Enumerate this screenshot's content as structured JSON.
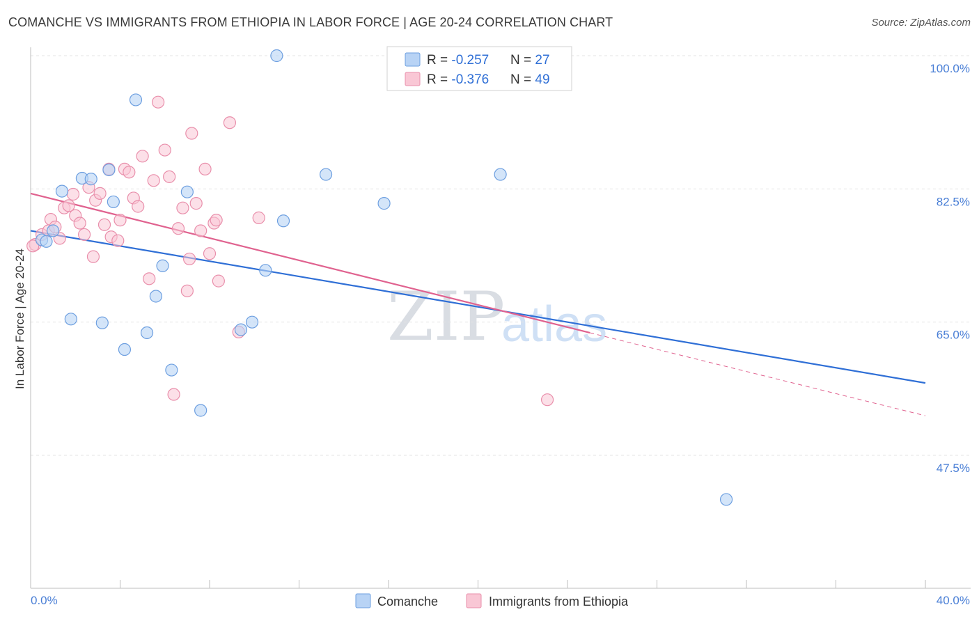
{
  "header": {
    "title": "COMANCHE VS IMMIGRANTS FROM ETHIOPIA IN LABOR FORCE | AGE 20-24 CORRELATION CHART",
    "source": "Source: ZipAtlas.com"
  },
  "watermark": {
    "zip": "ZIP",
    "atlas": "atlas"
  },
  "colors": {
    "comanche_fill": "#b8d3f5",
    "comanche_stroke": "#6d9fe0",
    "comanche_line": "#2f6fd6",
    "ethiopia_fill": "#f9c7d5",
    "ethiopia_stroke": "#e98fab",
    "ethiopia_line": "#e0628f",
    "grid": "#e3e3e3",
    "axis_label": "#4a7fd6"
  },
  "legend": {
    "rows": [
      {
        "r_label": "R = ",
        "r_value": "-0.257",
        "n_label": "N = ",
        "n_value": "27"
      },
      {
        "r_label": "R = ",
        "r_value": "-0.376",
        "n_label": "N = ",
        "n_value": "49"
      }
    ]
  },
  "chart_data": {
    "type": "scatter",
    "title": "COMANCHE VS IMMIGRANTS FROM ETHIOPIA IN LABOR FORCE | AGE 20-24 CORRELATION CHART",
    "xlabel": "",
    "ylabel": "In Labor Force | Age 20-24",
    "xlim": [
      0,
      40
    ],
    "ylim": [
      31.5,
      102
    ],
    "x_tick_labels": [
      "0.0%",
      "40.0%"
    ],
    "y_ticks": [
      47.5,
      65.0,
      82.5,
      100.0
    ],
    "y_tick_labels": [
      "47.5%",
      "65.0%",
      "82.5%",
      "100.0%"
    ],
    "legend_position": "top-center",
    "series": [
      {
        "name": "Comanche",
        "R": -0.257,
        "N": 27,
        "trend": {
          "x0": 0,
          "y0": 77.0,
          "x1": 40,
          "y1": 57.0
        },
        "points": [
          [
            0.5,
            75.8
          ],
          [
            0.7,
            75.6
          ],
          [
            1.0,
            77.0
          ],
          [
            1.4,
            82.2
          ],
          [
            1.8,
            65.4
          ],
          [
            2.3,
            83.9
          ],
          [
            2.7,
            83.8
          ],
          [
            3.2,
            64.9
          ],
          [
            3.5,
            85.0
          ],
          [
            3.7,
            80.8
          ],
          [
            4.2,
            61.4
          ],
          [
            4.7,
            94.2
          ],
          [
            5.2,
            63.6
          ],
          [
            5.6,
            68.4
          ],
          [
            5.9,
            72.4
          ],
          [
            6.3,
            58.7
          ],
          [
            7.0,
            82.1
          ],
          [
            7.6,
            53.4
          ],
          [
            9.4,
            64.0
          ],
          [
            9.9,
            65.0
          ],
          [
            10.5,
            71.8
          ],
          [
            11.0,
            100.0
          ],
          [
            11.3,
            78.3
          ],
          [
            13.2,
            84.4
          ],
          [
            15.8,
            80.6
          ],
          [
            21.0,
            84.4
          ],
          [
            31.1,
            41.7
          ]
        ]
      },
      {
        "name": "Immigrants from Ethiopia",
        "R": -0.376,
        "N": 49,
        "trend_solid": {
          "x0": 0,
          "y0": 81.9,
          "x1": 25.0,
          "y1": 63.6
        },
        "trend_dashed": {
          "x0": 25.0,
          "y0": 63.6,
          "x1": 40,
          "y1": 52.7
        },
        "points": [
          [
            0.2,
            75.2
          ],
          [
            0.5,
            76.5
          ],
          [
            0.8,
            77.0
          ],
          [
            0.9,
            78.5
          ],
          [
            1.1,
            77.5
          ],
          [
            1.3,
            76.0
          ],
          [
            1.5,
            80.0
          ],
          [
            1.7,
            80.3
          ],
          [
            1.9,
            81.8
          ],
          [
            2.0,
            79.0
          ],
          [
            2.2,
            78.0
          ],
          [
            2.4,
            76.5
          ],
          [
            2.6,
            82.7
          ],
          [
            2.8,
            73.6
          ],
          [
            2.9,
            81.0
          ],
          [
            3.1,
            81.9
          ],
          [
            3.3,
            77.8
          ],
          [
            3.5,
            85.1
          ],
          [
            3.6,
            76.2
          ],
          [
            3.9,
            75.7
          ],
          [
            4.0,
            78.4
          ],
          [
            4.2,
            85.1
          ],
          [
            4.4,
            84.7
          ],
          [
            4.6,
            81.3
          ],
          [
            4.8,
            80.2
          ],
          [
            5.0,
            86.8
          ],
          [
            5.3,
            70.7
          ],
          [
            5.5,
            83.6
          ],
          [
            5.7,
            93.9
          ],
          [
            6.0,
            87.6
          ],
          [
            6.2,
            84.1
          ],
          [
            6.4,
            55.5
          ],
          [
            6.6,
            77.3
          ],
          [
            6.8,
            80.0
          ],
          [
            7.0,
            69.1
          ],
          [
            7.1,
            73.3
          ],
          [
            7.2,
            89.8
          ],
          [
            7.4,
            80.6
          ],
          [
            7.6,
            77.0
          ],
          [
            7.8,
            85.1
          ],
          [
            8.0,
            74.0
          ],
          [
            8.2,
            78.0
          ],
          [
            8.3,
            78.4
          ],
          [
            8.4,
            70.4
          ],
          [
            8.9,
            91.2
          ],
          [
            9.3,
            63.7
          ],
          [
            10.2,
            78.7
          ],
          [
            23.1,
            54.8
          ],
          [
            0.1,
            75.0
          ]
        ]
      }
    ]
  },
  "bottom_legend": {
    "items": [
      {
        "label": "Comanche"
      },
      {
        "label": "Immigrants from Ethiopia"
      }
    ]
  }
}
